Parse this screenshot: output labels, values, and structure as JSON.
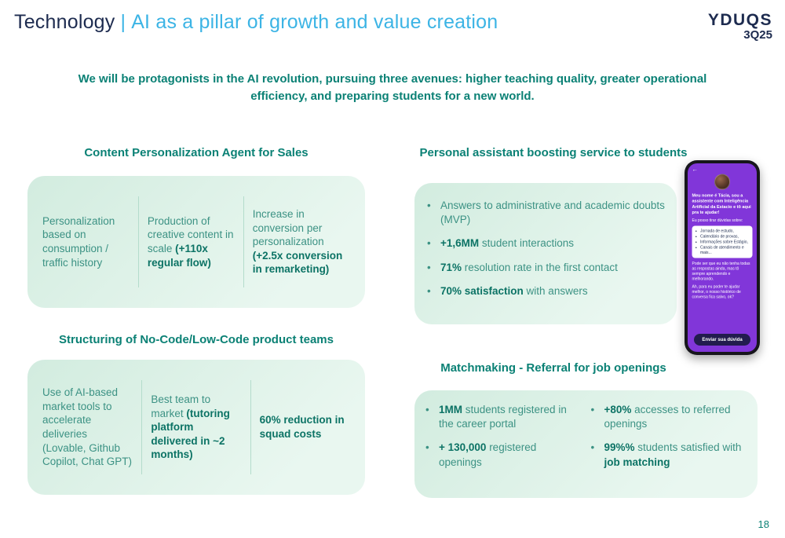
{
  "header": {
    "title_prefix": "Technology",
    "separator": "|",
    "title_main": "AI as a pillar of growth and value creation",
    "logo": {
      "name": "YDUQS",
      "quarter": "3Q25"
    },
    "subtitle": "We will be protagonists in the AI revolution, pursuing three avenues: higher teaching quality, greater operational efficiency, and preparing students for a new world."
  },
  "glyphs": {
    "bullet": "•",
    "back_arrow": "←"
  },
  "sales_agent": {
    "heading": "Content Personalization Agent for Sales",
    "cells": [
      {
        "pre": "Personalization based on consumption / traffic history",
        "bold": ""
      },
      {
        "pre": "Production of creative content in scale ",
        "bold": "(+110x regular flow)"
      },
      {
        "pre": "Increase in conversion per personalization ",
        "bold": "(+2.5x conversion in remarketing)"
      }
    ]
  },
  "nocode": {
    "heading": "Structuring of No-Code/Low-Code product teams",
    "cells": [
      {
        "pre": "Use of AI-based market tools to accelerate deliveries (Lovable, Github Copilot, Chat GPT)",
        "bold": ""
      },
      {
        "pre": "Best team to market ",
        "bold": "(tutoring platform delivered in ~2 months)"
      },
      {
        "pre": "",
        "bold": "60% reduction in squad costs"
      }
    ]
  },
  "assistant": {
    "heading": "Personal assistant boosting service to students",
    "bullets": [
      {
        "bold": "",
        "text": "Answers to administrative and academic doubts (MVP)"
      },
      {
        "bold": "+1,6MM",
        "text": " student interactions"
      },
      {
        "bold": "71%",
        "text": " resolution rate in the first contact"
      },
      {
        "bold": "70% satisfaction",
        "text": " with answers"
      }
    ]
  },
  "phone": {
    "message1": "Meu nome é Tácia, sou a assistente com Inteligência Artificial da Estacio e tô aqui pra te ajudar!",
    "message2": "Eu posso tirar dúvidas sobre:",
    "topics": [
      "Jornada de estudo,",
      "Calendário de provas,",
      "Informações sobre Estágio,",
      "Canais de atendimento e mais..."
    ],
    "message3": "Pode ser que eu não tenha todas as respostas ainda, mas tô sempre aprendendo e melhorando.",
    "message4": "Ah, para eu poder te ajudar melhor, o nosso histórico de conversa fica salvo, ok?",
    "button": "Enviar sua dúvida"
  },
  "matchmaking": {
    "heading": "Matchmaking - Referral for job openings",
    "left": [
      {
        "bold": "1MM",
        "text": " students registered in the career portal",
        "bold2": ""
      },
      {
        "bold": "+ 130,000",
        "text": " registered openings",
        "bold2": ""
      }
    ],
    "right": [
      {
        "bold": "+80%",
        "text": " accesses to referred openings",
        "bold2": ""
      },
      {
        "bold": "99%%",
        "text": " students satisfied with ",
        "bold2": "job matching"
      }
    ]
  },
  "footer": {
    "page_number": "18"
  }
}
